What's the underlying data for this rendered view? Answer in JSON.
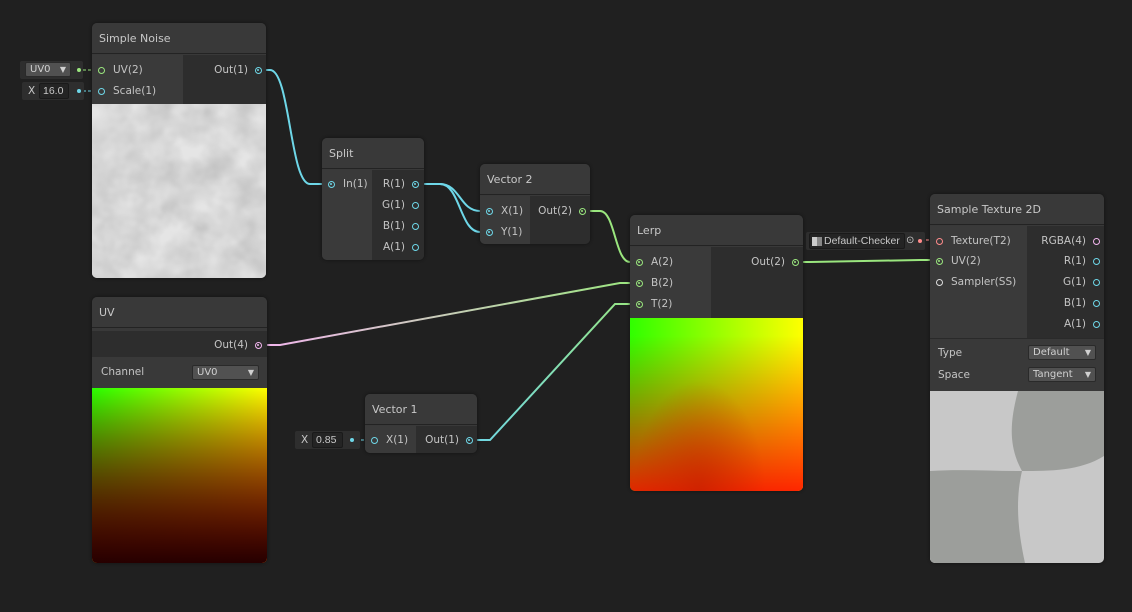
{
  "colors": {
    "background": "#202020",
    "node": "#393939",
    "float_port": "#6ed7e8",
    "vector2_port": "#9ae67e",
    "vector4_port": "#f2b5ee",
    "texture_port": "#ff8b8b",
    "sampler_port": "#ffffff"
  },
  "simple_noise": {
    "title": "Simple Noise",
    "inputs": [
      "UV(2)",
      "Scale(1)"
    ],
    "output": "Out(1)",
    "uv_field": "UV0",
    "scale_label": "X",
    "scale_value": "16.0"
  },
  "split": {
    "title": "Split",
    "input": "In(1)",
    "outputs": [
      "R(1)",
      "G(1)",
      "B(1)",
      "A(1)"
    ]
  },
  "vector2": {
    "title": "Vector 2",
    "inputs": [
      "X(1)",
      "Y(1)"
    ],
    "output": "Out(2)"
  },
  "lerp": {
    "title": "Lerp",
    "inputs": [
      "A(2)",
      "B(2)",
      "T(2)"
    ],
    "output": "Out(2)"
  },
  "uv": {
    "title": "UV",
    "output": "Out(4)",
    "channel_label": "Channel",
    "channel_value": "UV0"
  },
  "vector1": {
    "title": "Vector 1",
    "input": "X(1)",
    "output": "Out(1)",
    "x_label": "X",
    "x_value": "0.85"
  },
  "sample_texture": {
    "title": "Sample Texture 2D",
    "inputs": [
      "Texture(T2)",
      "UV(2)",
      "Sampler(SS)"
    ],
    "outputs": [
      "RGBA(4)",
      "R(1)",
      "G(1)",
      "B(1)",
      "A(1)"
    ],
    "texture_field": "Default-Checker",
    "type_label": "Type",
    "type_value": "Default",
    "space_label": "Space",
    "space_value": "Tangent"
  }
}
